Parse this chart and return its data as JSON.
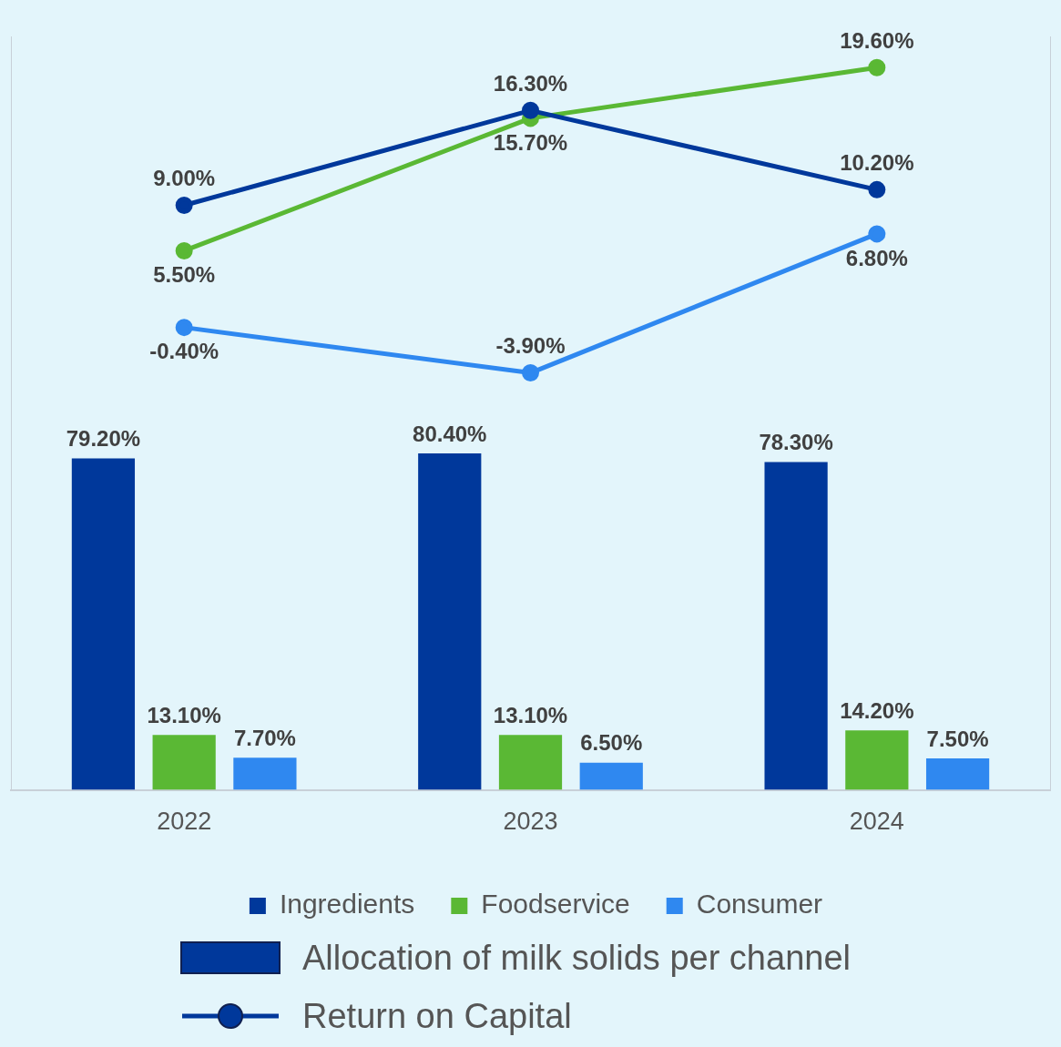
{
  "chart_data": {
    "type": "bar",
    "categories": [
      "2022",
      "2023",
      "2024"
    ],
    "series": [
      {
        "name": "Ingredients",
        "color": "#00389b",
        "values": [
          79.2,
          80.4,
          78.3
        ],
        "value_labels": [
          "79.20%",
          "80.40%",
          "78.30%"
        ]
      },
      {
        "name": "Foodservice",
        "color": "#5ab834",
        "values": [
          13.1,
          13.1,
          14.2
        ],
        "value_labels": [
          "13.10%",
          "13.10%",
          "14.20%"
        ]
      },
      {
        "name": "Consumer",
        "color": "#2f88f0",
        "values": [
          7.7,
          6.5,
          7.5
        ],
        "value_labels": [
          "7.70%",
          "6.50%",
          "7.50%"
        ]
      },
      {
        "type": "line",
        "axis": "y2",
        "color": "#00389b",
        "values": [
          9.0,
          16.3,
          10.2
        ],
        "value_labels": [
          "9.00%",
          "16.30%",
          "10.20%"
        ]
      },
      {
        "type": "line",
        "axis": "y2",
        "color": "#5ab834",
        "values": [
          5.5,
          15.7,
          19.6
        ],
        "value_labels": [
          "5.50%",
          "15.70%",
          "19.60%"
        ]
      },
      {
        "type": "line",
        "axis": "y2",
        "color": "#2f88f0",
        "values": [
          -0.4,
          -3.9,
          6.8
        ],
        "value_labels": [
          "-0.40%",
          "-3.90%",
          "6.80%"
        ]
      }
    ],
    "ylim": [
      0,
      180
    ],
    "y2lim": [
      -36,
      22
    ],
    "tick_labels": "x",
    "grid": false,
    "legend": "bottom",
    "marker": "circle",
    "line_style": "solid",
    "annotations": [
      "Allocation of milk solids per channel",
      "Return on Capital"
    ]
  }
}
